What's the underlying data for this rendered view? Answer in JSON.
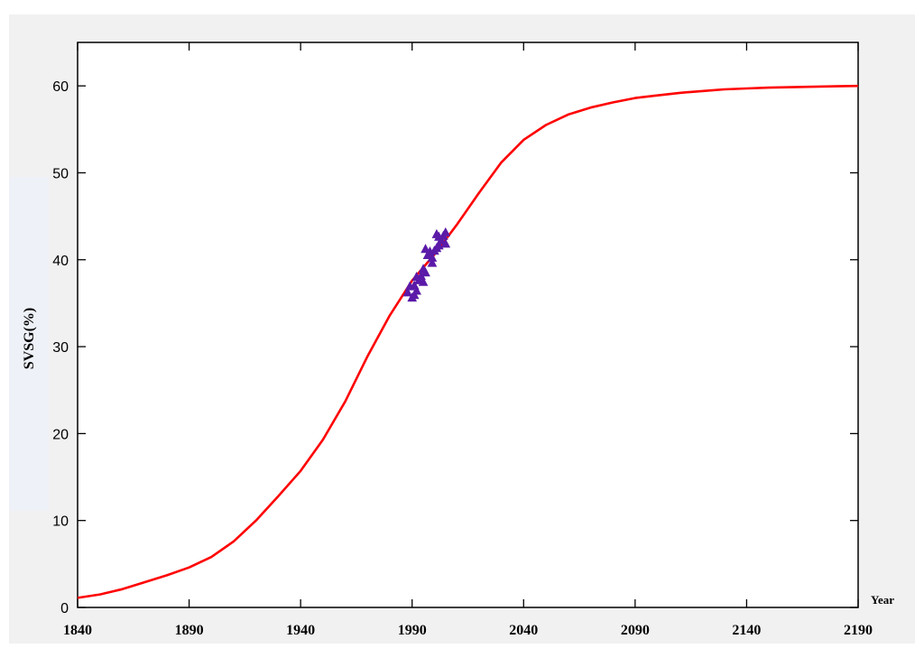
{
  "chart_data": {
    "type": "line",
    "xlabel": "Year",
    "ylabel": "SVSG(%)",
    "xlim": [
      1840,
      2190
    ],
    "ylim": [
      0,
      65
    ],
    "x_ticks": [
      1840,
      1890,
      1940,
      1990,
      2040,
      2090,
      2140,
      2190
    ],
    "y_ticks": [
      0,
      10,
      20,
      30,
      40,
      50,
      60
    ],
    "x_tick_labels": [
      "1840",
      "1890",
      "1940",
      "1990",
      "2040",
      "2090",
      "2140",
      "2190"
    ],
    "y_tick_labels": [
      "0",
      "10",
      "20",
      "30",
      "40",
      "50",
      "60"
    ],
    "grid": false,
    "legend": "none",
    "series": [
      {
        "color": "#ff0000",
        "style": "line",
        "x": [
          1840,
          1850,
          1860,
          1870,
          1880,
          1890,
          1900,
          1910,
          1920,
          1930,
          1940,
          1950,
          1960,
          1970,
          1980,
          1990,
          2000,
          2010,
          2020,
          2030,
          2040,
          2050,
          2060,
          2070,
          2080,
          2090,
          2100,
          2110,
          2120,
          2130,
          2140,
          2150,
          2160,
          2170,
          2180,
          2190
        ],
        "values": [
          1.1,
          1.5,
          2.1,
          2.9,
          3.7,
          4.6,
          5.8,
          7.6,
          10.0,
          12.8,
          15.7,
          19.3,
          23.7,
          28.9,
          33.6,
          37.6,
          40.6,
          44.0,
          47.7,
          51.2,
          53.8,
          55.5,
          56.7,
          57.5,
          58.1,
          58.6,
          58.9,
          59.2,
          59.4,
          59.6,
          59.7,
          59.8,
          59.85,
          59.9,
          59.95,
          60.0
        ]
      },
      {
        "color": "#5b1aa8",
        "style": "markers",
        "x": [
          1988,
          1990,
          1991,
          1992,
          1993,
          1994,
          1995,
          1996,
          1997,
          1998,
          1999,
          2000,
          2001,
          2002,
          2003,
          2004,
          2005,
          1989,
          1992,
          1995,
          1999,
          2002,
          2005,
          1991,
          1996,
          2001
        ],
        "values": [
          36.2,
          35.6,
          37.0,
          36.4,
          37.6,
          38.1,
          37.4,
          38.5,
          40.5,
          40.9,
          39.6,
          41.0,
          41.3,
          41.6,
          42.2,
          42.7,
          43.1,
          36.9,
          38.0,
          38.9,
          40.2,
          42.6,
          41.8,
          35.9,
          41.2,
          42.9
        ]
      }
    ]
  },
  "colors": {
    "frame": "#000000",
    "background": "#ffffff",
    "outer_background": "#f1f1f1",
    "fit_line": "#ff0000",
    "observations": "#5b1aa8"
  }
}
